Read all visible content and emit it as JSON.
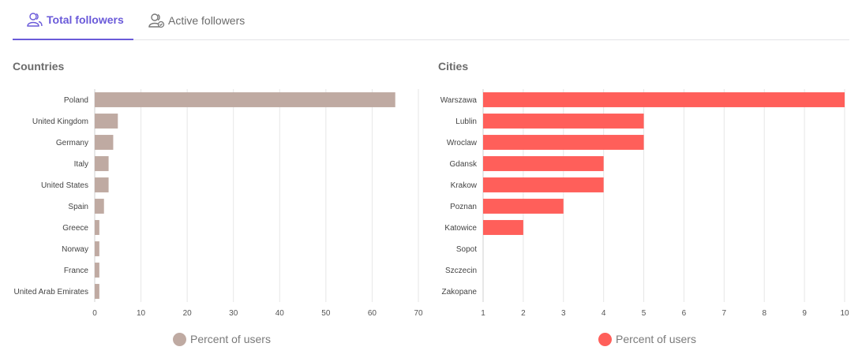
{
  "tabs": [
    {
      "label": "Total followers",
      "active": true,
      "icon": "users-icon"
    },
    {
      "label": "Active followers",
      "active": false,
      "icon": "active-users-icon"
    }
  ],
  "panels": {
    "countries": {
      "title": "Countries",
      "legend": "Percent of users",
      "color": "#bfaaa2"
    },
    "cities": {
      "title": "Cities",
      "legend": "Percent of users",
      "color": "#ff5f5a"
    }
  },
  "chart_data": [
    {
      "type": "bar",
      "orientation": "horizontal",
      "title": "Countries",
      "categories": [
        "Poland",
        "United Kingdom",
        "Germany",
        "Italy",
        "United States",
        "Spain",
        "Greece",
        "Norway",
        "France",
        "United Arab Emirates"
      ],
      "series": [
        {
          "name": "Percent of users",
          "values": [
            65,
            5,
            4,
            3,
            3,
            2,
            1,
            1,
            1,
            1
          ],
          "color": "#bfaaa2"
        }
      ],
      "xlim": [
        0,
        70
      ],
      "xticks": [
        0,
        10,
        20,
        30,
        40,
        50,
        60,
        70
      ],
      "grid": true,
      "legend": "bottom-center"
    },
    {
      "type": "bar",
      "orientation": "horizontal",
      "title": "Cities",
      "categories": [
        "Warszawa",
        "Lublin",
        "Wroclaw",
        "Gdansk",
        "Krakow",
        "Poznan",
        "Katowice",
        "Sopot",
        "Szczecin",
        "Zakopane"
      ],
      "series": [
        {
          "name": "Percent of users",
          "values": [
            10,
            5,
            5,
            4,
            4,
            3,
            2,
            1,
            1,
            1
          ],
          "color": "#ff5f5a"
        }
      ],
      "xlim": [
        1,
        10
      ],
      "xticks": [
        1,
        2,
        3,
        4,
        5,
        6,
        7,
        8,
        9,
        10
      ],
      "grid": true,
      "legend": "bottom-center"
    }
  ]
}
